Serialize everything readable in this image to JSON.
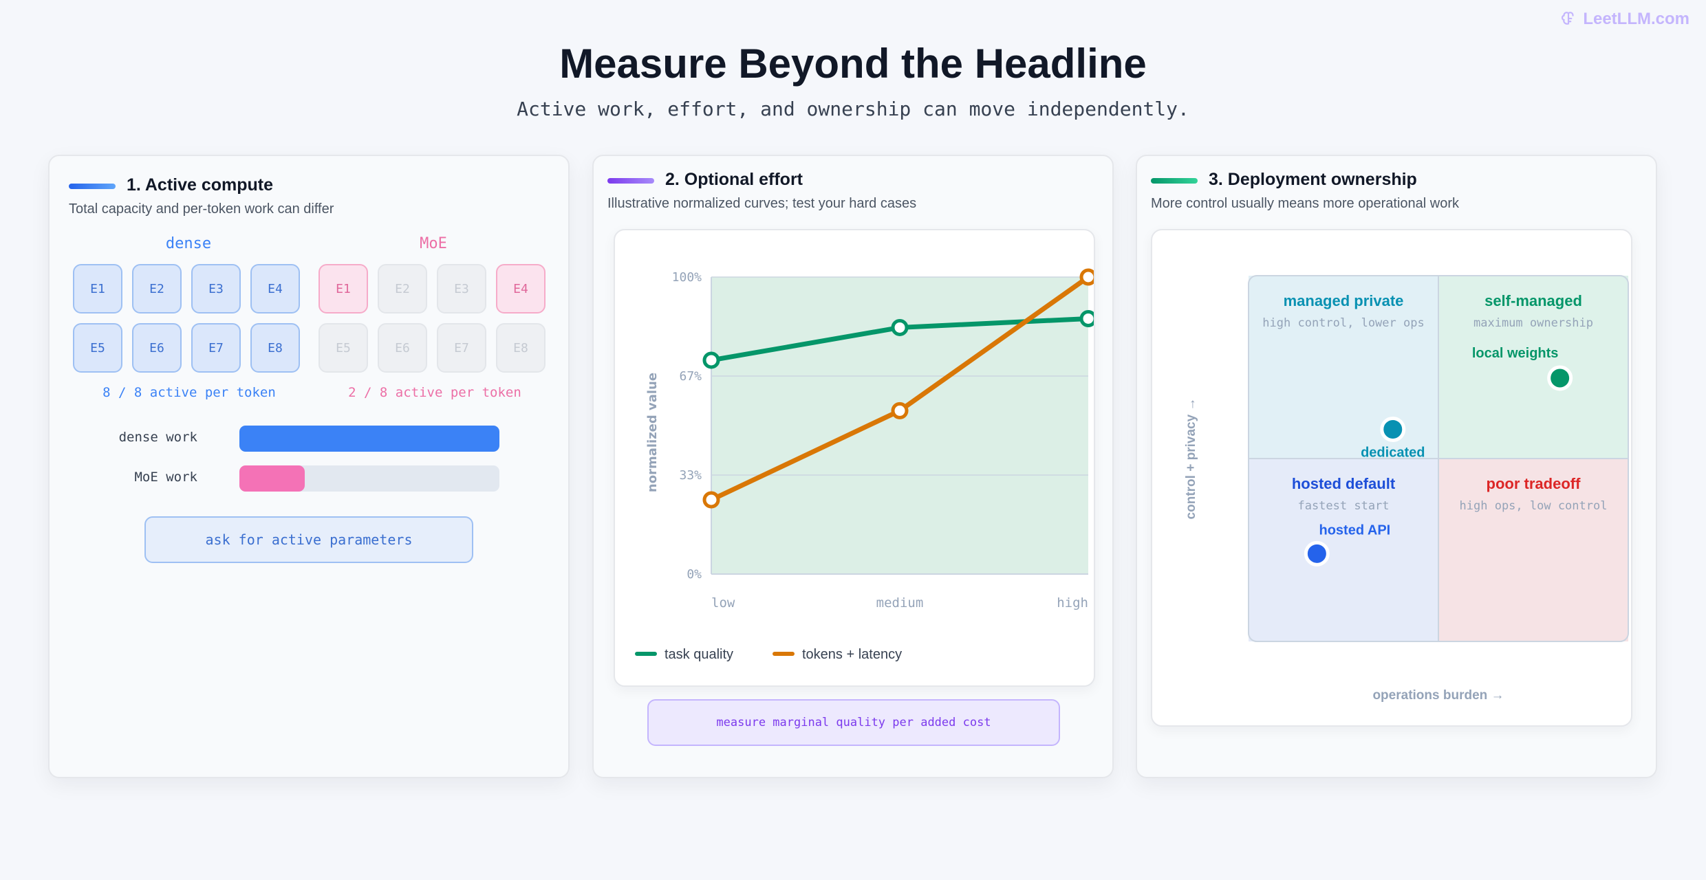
{
  "brand": {
    "name": "LeetLLM.com",
    "icon": "brain-icon"
  },
  "header": {
    "title": "Measure Beyond the Headline",
    "subtitle": "Active work, effort, and ownership can move independently."
  },
  "colors": {
    "blue": "#3b82f6",
    "pink": "#f472b6",
    "purple": "#8b5cf6",
    "green": "#059669",
    "orange": "#d97706",
    "teal": "#0891b2",
    "red": "#dc2626"
  },
  "card1": {
    "title": "1. Active compute",
    "subtitle": "Total capacity and per-token work can differ",
    "dense_label": "dense",
    "moe_label": "MoE",
    "experts": [
      "E1",
      "E2",
      "E3",
      "E4",
      "E5",
      "E6",
      "E7",
      "E8"
    ],
    "moe_active": [
      "E1",
      "E4"
    ],
    "dense_note": "8 / 8 active per token",
    "moe_note": "2 / 8 active per token",
    "bars": [
      {
        "label": "dense work",
        "fraction": 1.0
      },
      {
        "label": "MoE work",
        "fraction": 0.25
      }
    ],
    "cta": "ask for active parameters"
  },
  "card2": {
    "title": "2. Optional effort",
    "subtitle": "Illustrative normalized curves; test your hard cases",
    "cta": "measure marginal quality per added cost"
  },
  "card3": {
    "title": "3. Deployment ownership",
    "subtitle": "More control usually means more operational work",
    "quadrants": {
      "top_left": {
        "title": "managed private",
        "sub": "high control, lower ops"
      },
      "top_right": {
        "title": "self-managed",
        "sub": "maximum ownership"
      },
      "bottom_left": {
        "title": "hosted default",
        "sub": "fastest start"
      },
      "bottom_right": {
        "title": "poor tradeoff",
        "sub": "high ops, low control"
      }
    },
    "points": [
      {
        "label": "local weights",
        "x": 0.82,
        "y": 0.72,
        "color": "#059669"
      },
      {
        "label": "dedicated",
        "x": 0.38,
        "y": 0.58,
        "color": "#0891b2"
      },
      {
        "label": "hosted API",
        "x": 0.18,
        "y": 0.24,
        "color": "#2563eb"
      }
    ],
    "xlabel": "operations burden →",
    "ylabel": "control + privacy →"
  },
  "chart_data": {
    "type": "line",
    "categories": [
      "low",
      "medium",
      "high"
    ],
    "series": [
      {
        "name": "task quality",
        "values": [
          72,
          83,
          86
        ],
        "color": "#059669"
      },
      {
        "name": "tokens + latency",
        "values": [
          25,
          55,
          100
        ],
        "color": "#d97706"
      }
    ],
    "title": "",
    "xlabel": "",
    "ylabel": "normalized value",
    "ylim": [
      0,
      100
    ],
    "yticks": [
      "0%",
      "33%",
      "67%",
      "100%"
    ],
    "grid": true,
    "legend": "bottom-left"
  }
}
